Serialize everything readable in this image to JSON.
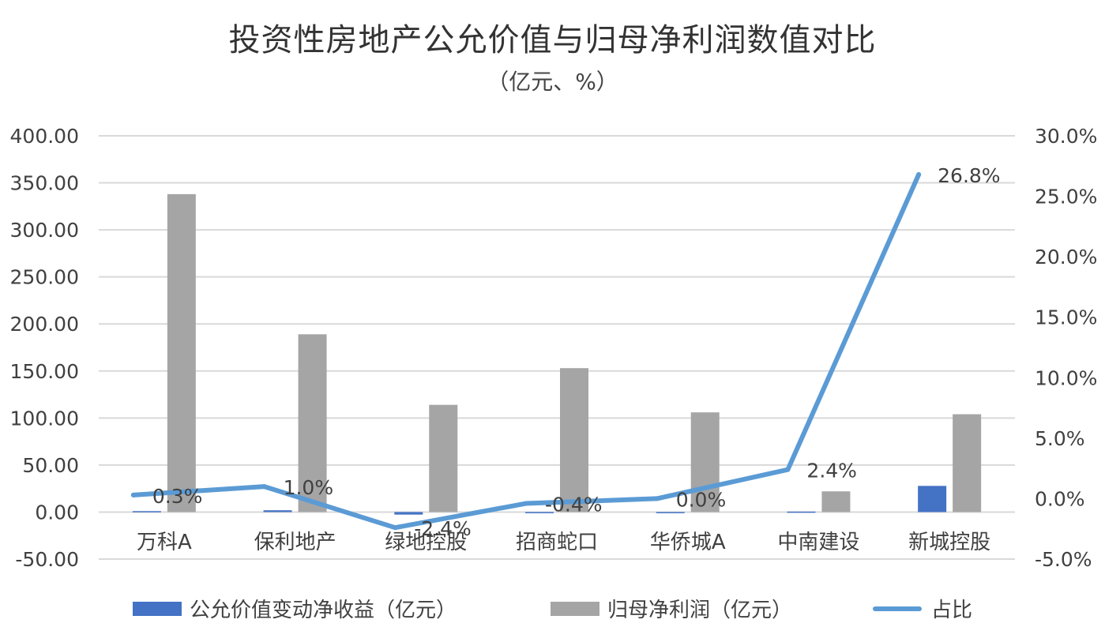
{
  "title": "投资性房地产公允价值与归母净利润数值对比",
  "subtitle": "（亿元、%）",
  "colors": {
    "fair_value_bar": "#4472C4",
    "net_profit_bar": "#A5A5A5",
    "ratio_line": "#5B9BD5",
    "grid": "#D9D9D9",
    "text": "#404040"
  },
  "legend": {
    "fair_value": "公允价值变动净收益（亿元）",
    "net_profit": "归母净利润（亿元）",
    "ratio": "占比"
  },
  "chart_data": {
    "type": "bar",
    "categories": [
      "万科A",
      "保利地产",
      "绿地控股",
      "招商蛇口",
      "华侨城A",
      "中南建设",
      "新城控股"
    ],
    "series": [
      {
        "name": "公允价值变动净收益（亿元）",
        "type": "bar",
        "axis": "left",
        "values": [
          1.0,
          1.9,
          -2.7,
          -0.6,
          0.0,
          0.5,
          27.8
        ]
      },
      {
        "name": "归母净利润（亿元）",
        "type": "bar",
        "axis": "left",
        "values": [
          338.0,
          189.0,
          114.0,
          153.0,
          106.0,
          22.0,
          104.0
        ]
      },
      {
        "name": "占比",
        "type": "line",
        "axis": "right",
        "values": [
          0.3,
          1.0,
          -2.4,
          -0.4,
          0.0,
          2.4,
          26.8
        ],
        "labels": [
          "0.3%",
          "1.0%",
          "-2.4%",
          "-0.4%",
          "0.0%",
          "2.4%",
          "26.8%"
        ]
      }
    ],
    "y_left": {
      "min": -50,
      "max": 400,
      "step": 50,
      "tick_labels": [
        "-50.00",
        "0.00",
        "50.00",
        "100.00",
        "150.00",
        "200.00",
        "250.00",
        "300.00",
        "350.00",
        "400.00"
      ]
    },
    "y_right": {
      "min": -5,
      "max": 30,
      "step": 5,
      "tick_labels": [
        "-5.0%",
        "0.0%",
        "5.0%",
        "10.0%",
        "15.0%",
        "20.0%",
        "25.0%",
        "30.0%"
      ]
    },
    "grid": true,
    "legend_position": "bottom"
  }
}
